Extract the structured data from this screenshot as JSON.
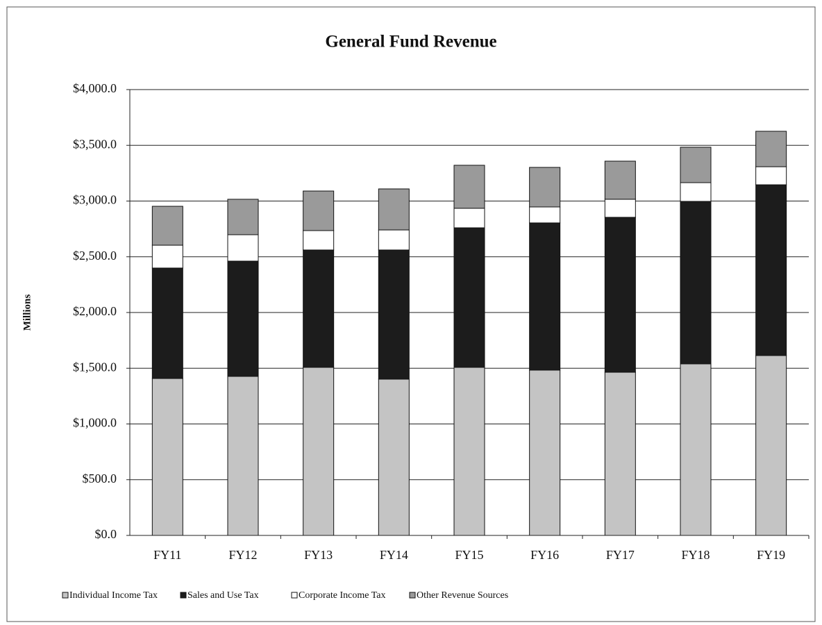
{
  "chart_data": {
    "type": "stacked_bar",
    "title": "General Fund Revenue",
    "y_label": "Millions",
    "categories": [
      "FY11",
      "FY12",
      "FY13",
      "FY14",
      "FY15",
      "FY16",
      "FY17",
      "FY18",
      "FY19"
    ],
    "series": [
      {
        "name": "Individual Income Tax",
        "color": "#c4c4c4",
        "values": [
          1408,
          1427,
          1508,
          1402,
          1508,
          1483,
          1464,
          1539,
          1614
        ]
      },
      {
        "name": "Sales and Use Tax",
        "color": "#1c1c1c",
        "values": [
          991,
          1034,
          1053,
          1159,
          1252,
          1321,
          1390,
          1458,
          1532
        ]
      },
      {
        "name": "Corporate Income Tax",
        "color": "#ffffff",
        "values": [
          205,
          237,
          174,
          180,
          175,
          143,
          162,
          168,
          162
        ]
      },
      {
        "name": "Other Revenue Sources",
        "color": "#9a9a9a",
        "values": [
          349,
          318,
          355,
          368,
          386,
          355,
          342,
          318,
          318
        ]
      }
    ],
    "ylim": [
      0,
      4000
    ],
    "yticks": [
      {
        "value": 0,
        "label": "$0.0"
      },
      {
        "value": 500,
        "label": "$500.0"
      },
      {
        "value": 1000,
        "label": "$1,000.0"
      },
      {
        "value": 1500,
        "label": "$1,500.0"
      },
      {
        "value": 2000,
        "label": "$2,000.0"
      },
      {
        "value": 2500,
        "label": "$2,500.0"
      },
      {
        "value": 3000,
        "label": "$3,000.0"
      },
      {
        "value": 3500,
        "label": "$3,500.0"
      },
      {
        "value": 4000,
        "label": "$4,000.0"
      }
    ],
    "grid": true,
    "legend": "bottom"
  }
}
